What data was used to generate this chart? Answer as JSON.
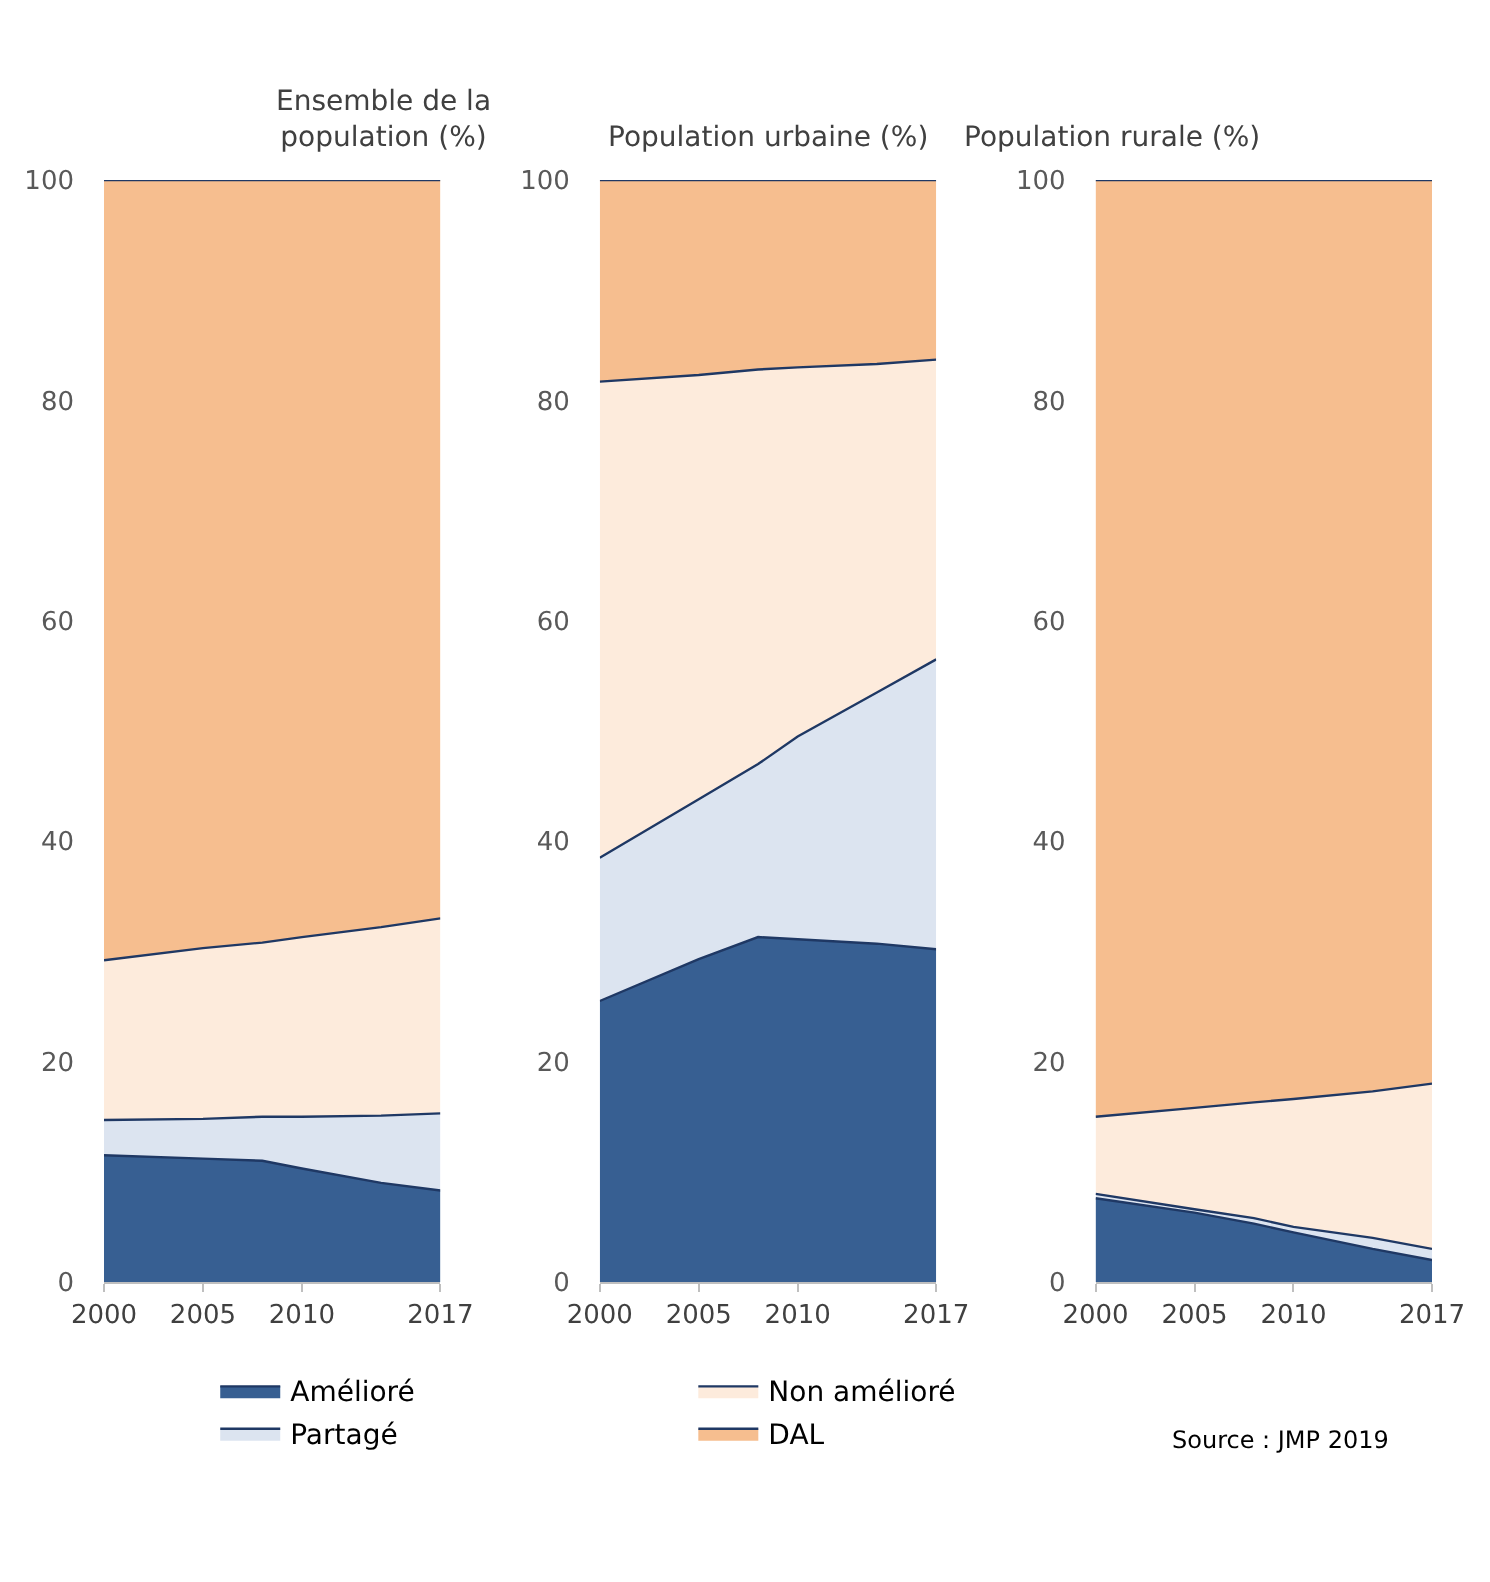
{
  "chart_data": [
    {
      "type": "area",
      "stacked": true,
      "title": "Ensemble de la\npopulation (%)",
      "x": [
        2000,
        2005,
        2008,
        2010,
        2014,
        2017
      ],
      "xlim": [
        2000,
        2017
      ],
      "xticks": [
        2000,
        2005,
        2010,
        2017
      ],
      "ylim": [
        0,
        100
      ],
      "yticks": [
        0,
        20,
        40,
        60,
        80,
        100
      ],
      "legend": "bottom",
      "series": [
        {
          "name": "Amélioré",
          "color": "#375f92",
          "values": [
            11.5,
            11.2,
            11.0,
            10.3,
            9.0,
            8.3
          ]
        },
        {
          "name": "Partagé",
          "color": "#dce4f0",
          "values": [
            3.2,
            3.6,
            4.0,
            4.7,
            6.1,
            7.0
          ]
        },
        {
          "name": "Non amélioré",
          "color": "#fdebdc",
          "values": [
            14.5,
            15.5,
            15.8,
            16.3,
            17.1,
            17.7
          ]
        },
        {
          "name": "DAL",
          "color": "#f6be8f",
          "values": [
            70.8,
            69.7,
            69.2,
            68.7,
            67.8,
            67.0
          ]
        }
      ]
    },
    {
      "type": "area",
      "stacked": true,
      "title": "Population urbaine (%)",
      "x": [
        2000,
        2005,
        2008,
        2010,
        2014,
        2017
      ],
      "xlim": [
        2000,
        2017
      ],
      "xticks": [
        2000,
        2005,
        2010,
        2017
      ],
      "ylim": [
        0,
        100
      ],
      "yticks": [
        0,
        20,
        40,
        60,
        80,
        100
      ],
      "series": [
        {
          "name": "Amélioré",
          "color": "#375f92",
          "values": [
            25.5,
            29.3,
            31.3,
            31.1,
            30.7,
            30.2
          ]
        },
        {
          "name": "Partagé",
          "color": "#dce4f0",
          "values": [
            13.0,
            14.5,
            15.7,
            18.4,
            22.8,
            26.3
          ]
        },
        {
          "name": "Non amélioré",
          "color": "#fdebdc",
          "values": [
            43.2,
            38.5,
            35.8,
            33.5,
            29.8,
            27.2
          ]
        },
        {
          "name": "DAL",
          "color": "#f6be8f",
          "values": [
            18.3,
            17.7,
            17.2,
            17.0,
            16.7,
            16.3
          ]
        }
      ]
    },
    {
      "type": "area",
      "stacked": true,
      "title": "Population rurale (%)",
      "x": [
        2000,
        2005,
        2008,
        2010,
        2014,
        2017
      ],
      "xlim": [
        2000,
        2017
      ],
      "xticks": [
        2000,
        2005,
        2010,
        2017
      ],
      "ylim": [
        0,
        100
      ],
      "yticks": [
        0,
        20,
        40,
        60,
        80,
        100
      ],
      "annotations": [
        "Source : JMP 2019"
      ],
      "series": [
        {
          "name": "Amélioré",
          "color": "#375f92",
          "values": [
            7.6,
            6.3,
            5.3,
            4.5,
            3.0,
            2.0
          ]
        },
        {
          "name": "Partagé",
          "color": "#dce4f0",
          "values": [
            0.4,
            0.3,
            0.5,
            0.5,
            1.0,
            1.0
          ]
        },
        {
          "name": "Non amélioré",
          "color": "#fdebdc",
          "values": [
            7.0,
            9.2,
            10.5,
            11.6,
            13.3,
            15.0
          ]
        },
        {
          "name": "DAL",
          "color": "#f6be8f",
          "values": [
            85.0,
            84.2,
            83.7,
            83.4,
            82.7,
            82.0
          ]
        }
      ]
    }
  ]
}
